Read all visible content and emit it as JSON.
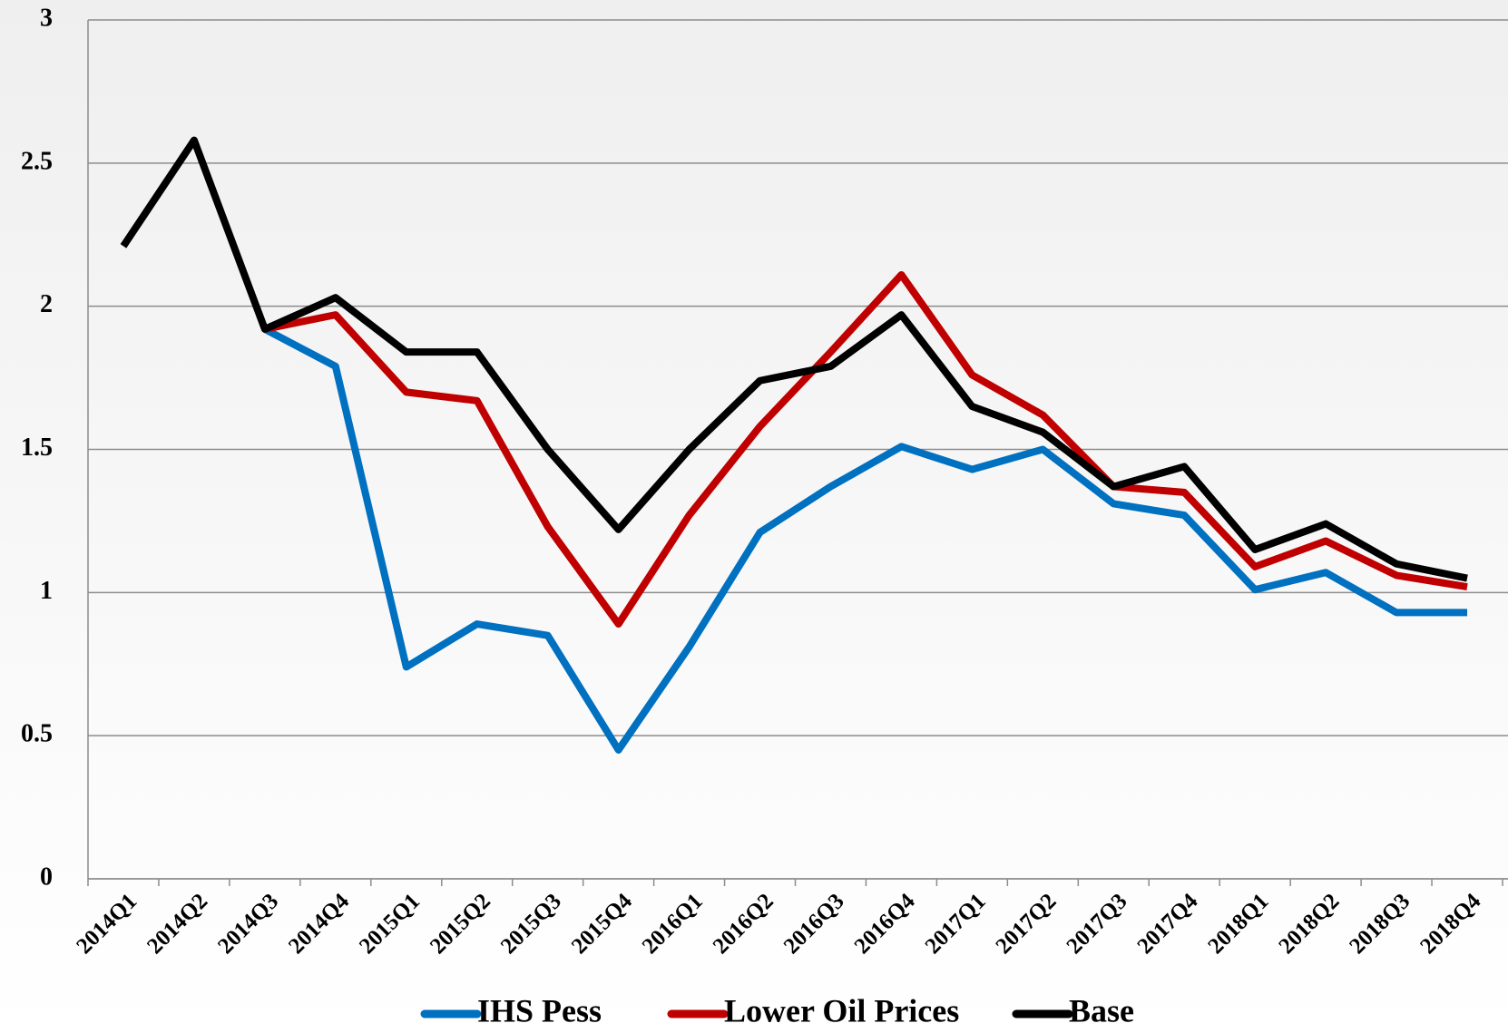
{
  "chart_data": {
    "type": "line",
    "categories": [
      "2014Q1",
      "2014Q2",
      "2014Q3",
      "2014Q4",
      "2015Q1",
      "2015Q2",
      "2015Q3",
      "2015Q4",
      "2016Q1",
      "2016Q2",
      "2016Q3",
      "2016Q4",
      "2017Q1",
      "2017Q2",
      "2017Q3",
      "2017Q4",
      "2018Q1",
      "2018Q2",
      "2018Q3",
      "2018Q4"
    ],
    "series": [
      {
        "name": "IHS Pess",
        "color": "#0070c0",
        "values": [
          null,
          null,
          1.92,
          1.79,
          0.74,
          0.89,
          0.85,
          0.45,
          0.81,
          1.21,
          1.37,
          1.51,
          1.43,
          1.5,
          1.31,
          1.27,
          1.01,
          1.07,
          0.93,
          0.93
        ]
      },
      {
        "name": "Lower Oil Prices",
        "color": "#c00000",
        "values": [
          null,
          null,
          1.92,
          1.97,
          1.7,
          1.67,
          1.23,
          0.89,
          1.27,
          1.58,
          1.84,
          2.11,
          1.76,
          1.62,
          1.37,
          1.35,
          1.09,
          1.18,
          1.06,
          1.02
        ]
      },
      {
        "name": "Base",
        "color": "#000000",
        "values": [
          2.21,
          2.58,
          1.92,
          2.03,
          1.84,
          1.84,
          1.5,
          1.22,
          1.5,
          1.74,
          1.79,
          1.97,
          1.65,
          1.56,
          1.37,
          1.44,
          1.15,
          1.24,
          1.1,
          1.05
        ]
      }
    ],
    "ylim": [
      0,
      3
    ],
    "yticks": [
      0,
      0.5,
      1,
      1.5,
      2,
      2.5,
      3
    ],
    "grid": true,
    "legend": "bottom"
  }
}
